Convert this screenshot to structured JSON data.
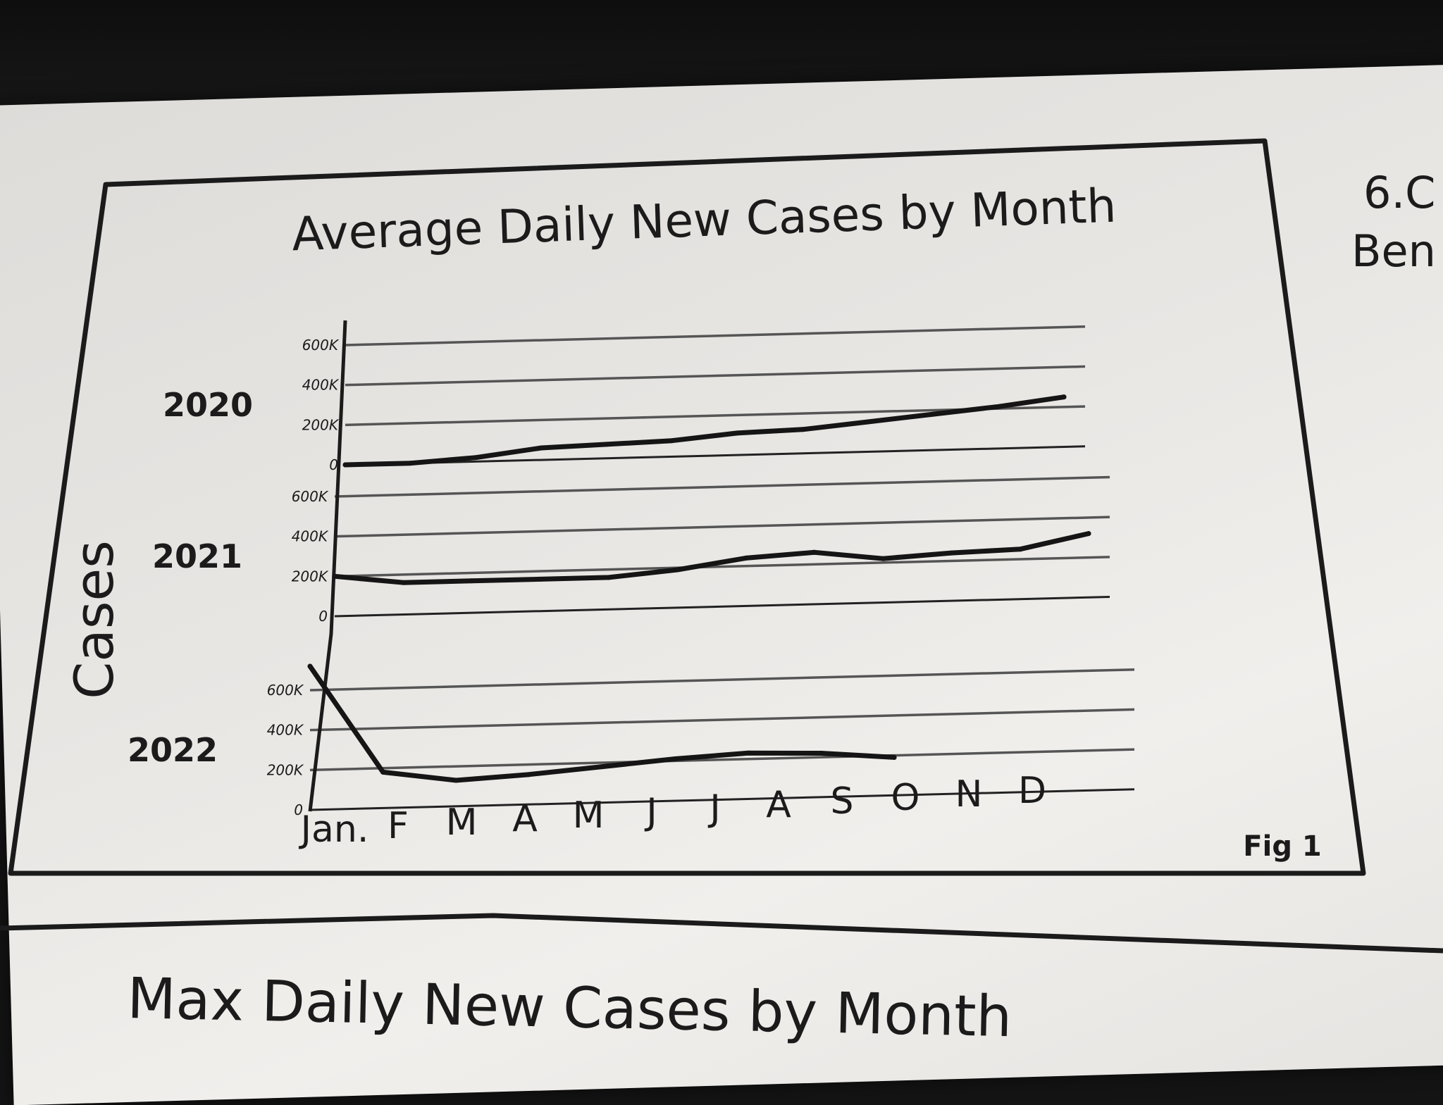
{
  "chart_data": {
    "type": "line",
    "title": "Average Daily New Cases by Month",
    "ylabel": "Cases",
    "figure_label": "Fig 1",
    "categories": [
      "Jan.",
      "F",
      "M",
      "A",
      "M",
      "J",
      "J",
      "A",
      "S",
      "O",
      "N",
      "D"
    ],
    "panels": [
      {
        "name": "2020",
        "ylim": [
          0,
          600000
        ],
        "ticks": [
          "0",
          "200K",
          "400K",
          "600K"
        ],
        "values": [
          0,
          0,
          20000,
          60000,
          70000,
          80000,
          110000,
          120000,
          150000,
          180000,
          210000,
          250000
        ]
      },
      {
        "name": "2021",
        "ylim": [
          0,
          600000
        ],
        "ticks": [
          "0",
          "200K",
          "400K",
          "600K"
        ],
        "values": [
          200000,
          160000,
          160000,
          160000,
          160000,
          190000,
          240000,
          260000,
          220000,
          240000,
          250000,
          320000
        ]
      },
      {
        "name": "2022",
        "ylim": [
          0,
          600000
        ],
        "ticks": [
          "0",
          "200K",
          "400K",
          "600K"
        ],
        "values": [
          720000,
          180000,
          130000,
          150000,
          180000,
          210000,
          230000,
          220000,
          190000,
          null,
          null,
          null
        ]
      }
    ],
    "grid": true
  },
  "section2": {
    "title": "Max Daily New Cases by Month"
  },
  "edge_text": {
    "line1": "6.C",
    "line2": "Ben"
  }
}
